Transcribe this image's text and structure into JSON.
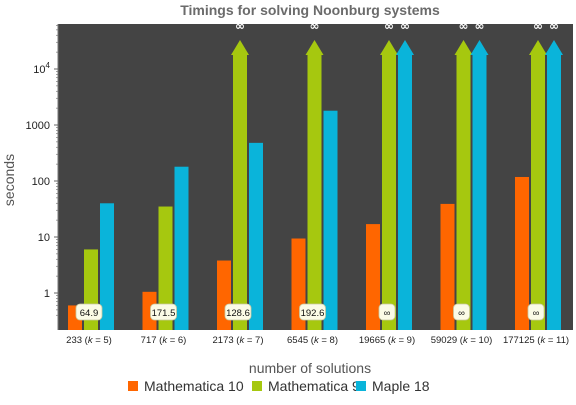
{
  "chart_data": {
    "type": "bar",
    "title": "Timings for solving Noonburg systems",
    "xlabel": "number of solutions",
    "ylabel": "seconds",
    "yscale": "log",
    "ylim": [
      0.3,
      100000
    ],
    "yticks": [
      1,
      10,
      100,
      1000,
      10000
    ],
    "ytick_labels": [
      "1",
      "10",
      "100",
      "1000",
      "10^4"
    ],
    "categories": [
      "233 (k = 5)",
      "717 (k = 6)",
      "2173 (k = 7)",
      "6545 (k = 8)",
      "19665 (k = 9)",
      "59029 (k = 10)",
      "177125 (k = 11)"
    ],
    "category_parts": [
      {
        "n": "233",
        "k": "5"
      },
      {
        "n": "717",
        "k": "6"
      },
      {
        "n": "2173",
        "k": "7"
      },
      {
        "n": "6545",
        "k": "8"
      },
      {
        "n": "19665",
        "k": "9"
      },
      {
        "n": "59029",
        "k": "10"
      },
      {
        "n": "177125",
        "k": "11"
      }
    ],
    "series": [
      {
        "name": "Mathematica 10",
        "color": "#ff6600",
        "values": [
          0.6,
          1.05,
          3.8,
          9.4,
          17,
          39,
          118
        ],
        "infinite": [
          false,
          false,
          false,
          false,
          false,
          false,
          false
        ]
      },
      {
        "name": "Mathematica 9",
        "color": "#a6c80f",
        "values": [
          6,
          35,
          null,
          null,
          null,
          null,
          null
        ],
        "infinite": [
          false,
          false,
          true,
          true,
          true,
          true,
          true
        ]
      },
      {
        "name": "Maple 18",
        "color": "#0ab4da",
        "values": [
          40,
          180,
          480,
          1800,
          null,
          null,
          null
        ],
        "infinite": [
          false,
          false,
          false,
          false,
          true,
          true,
          true
        ]
      }
    ],
    "infinity_symbol": "∞",
    "data_labels": [
      "64.9",
      "171.5",
      "128.6",
      "192.6",
      "∞",
      "∞",
      "∞"
    ],
    "legend_position": "bottom",
    "background": "#444444",
    "grid": false
  }
}
